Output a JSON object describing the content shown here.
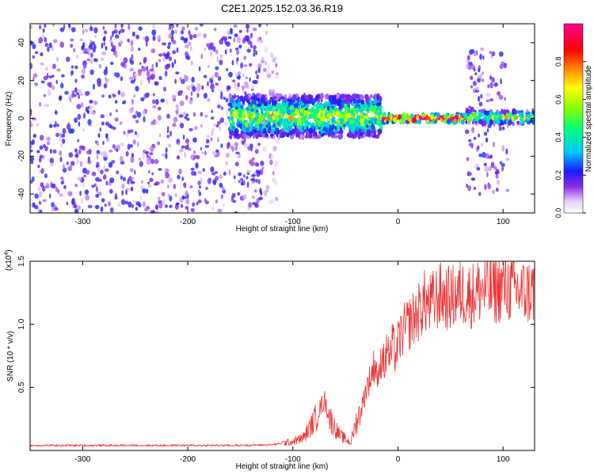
{
  "title": "C2E1.2025.152.03.36.R19",
  "chart_data": [
    {
      "type": "heatmap",
      "xlabel": "Height of straight line (km)",
      "ylabel": "Frequency (Hz)",
      "xlim": [
        -350,
        130
      ],
      "ylim": [
        -50,
        50
      ],
      "x_ticks": [
        -300,
        -200,
        -100,
        0,
        100
      ],
      "y_ticks": [
        -40,
        -20,
        0,
        20,
        40
      ],
      "colorbar": {
        "label": "Normalized spectral amplitude",
        "range": [
          0,
          1
        ],
        "ticks": [
          "0.0",
          "0.2",
          "0.4",
          "0.6",
          "0.8"
        ],
        "tick_values": [
          0,
          0.2,
          0.4,
          0.6,
          0.8
        ],
        "colormap": "white-purple-blue-cyan-green-yellow-red-magenta"
      },
      "regions": [
        {
          "x": [
            -350,
            -128
          ],
          "y": [
            -50,
            50
          ],
          "amplitude": 0.15,
          "pattern": "scattered noise"
        },
        {
          "x": [
            -128,
            -115
          ],
          "y": [
            -50,
            50
          ],
          "amplitude": 0.08,
          "pattern": "sparse noise"
        },
        {
          "x": [
            -160,
            -15
          ],
          "y": [
            -10,
            12
          ],
          "amplitude": 0.45,
          "pattern": "broad central band"
        },
        {
          "x": [
            -15,
            65
          ],
          "y": [
            -2,
            2
          ],
          "amplitude": 0.9,
          "pattern": "narrow carrier line"
        },
        {
          "x": [
            65,
            105
          ],
          "y": [
            -40,
            37
          ],
          "amplitude": 0.15,
          "pattern": "scattered noise"
        },
        {
          "x": [
            65,
            130
          ],
          "y": [
            -3,
            4
          ],
          "amplitude": 0.45,
          "pattern": "central band"
        }
      ]
    },
    {
      "type": "line",
      "xlabel": "Height of straight line (km)",
      "ylabel": "SNR (10 * v/v)",
      "ymultiplier": "(x10",
      "ymultiplier_exp": "4",
      "ymultiplier_close": ")",
      "xlim": [
        -350,
        130
      ],
      "ylim": [
        0,
        15000
      ],
      "x_ticks": [
        -300,
        -200,
        -100,
        0,
        100
      ],
      "y_ticks": [
        "0.5",
        "1.0",
        "1.5"
      ],
      "y_tick_values": [
        5000,
        10000,
        15000
      ],
      "color": "#ee3333",
      "series": [
        {
          "x": [
            -350,
            -250,
            -150,
            -120,
            -100,
            -90,
            -80,
            -75,
            -70,
            -65,
            -60,
            -55,
            -50,
            -45,
            -40,
            -35,
            -30,
            -25,
            -22,
            -18,
            -15,
            -12,
            -10,
            -8,
            -5,
            -2,
            0,
            5,
            10,
            15,
            20,
            25,
            30,
            40,
            50,
            60,
            70,
            80,
            90,
            100,
            110,
            120,
            130
          ],
          "y": [
            400,
            400,
            400,
            450,
            700,
            1000,
            2300,
            3200,
            4000,
            2600,
            1800,
            1200,
            900,
            600,
            2200,
            3200,
            5000,
            6000,
            7000,
            5500,
            8000,
            6500,
            9000,
            7000,
            8500,
            7500,
            8500,
            9500,
            10000,
            10500,
            11000,
            11800,
            11500,
            12300,
            12000,
            12500,
            12300,
            12800,
            12600,
            13000,
            12800,
            12500,
            12700
          ]
        }
      ]
    }
  ]
}
